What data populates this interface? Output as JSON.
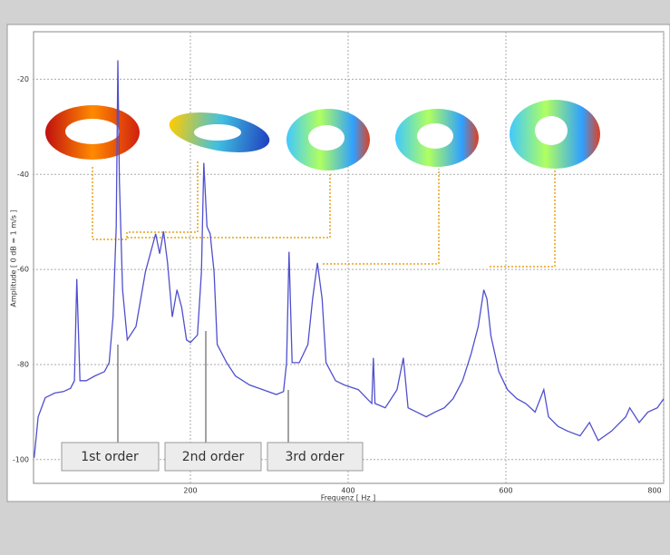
{
  "chart_data": {
    "type": "line",
    "x_label": "Frequenz [ Hz ]",
    "y_label": "Amplitude [ 0 dB = 1 m/s ]",
    "xlim": [
      0,
      800
    ],
    "ylim": [
      -105,
      -10
    ],
    "xticks": [
      200,
      400,
      600,
      800
    ],
    "yticks": [
      -100,
      -80,
      -60,
      -40,
      -20
    ],
    "grid": true,
    "color": "#4f4fcf",
    "x": [
      2,
      7,
      16,
      28,
      39,
      48,
      53,
      56,
      60,
      68,
      79,
      91,
      97,
      102,
      106,
      108,
      110,
      114,
      120,
      131,
      143,
      156,
      161,
      166,
      171,
      177,
      183,
      189,
      195,
      200,
      209,
      214,
      217,
      221,
      225,
      230,
      234,
      246,
      257,
      275,
      292,
      309,
      318,
      322,
      325,
      329,
      338,
      349,
      355,
      361,
      367,
      372,
      384,
      395,
      413,
      424,
      430,
      432,
      434,
      447,
      462,
      470,
      476,
      487,
      499,
      510,
      522,
      533,
      545,
      556,
      565,
      572,
      576,
      581,
      591,
      602,
      614,
      625,
      637,
      648,
      654,
      666,
      678,
      694,
      706,
      717,
      734,
      752,
      757,
      769,
      780,
      792,
      800
    ],
    "values": [
      -99.6,
      -91,
      -87,
      -86,
      -85.7,
      -85,
      -83.4,
      -62,
      -83.4,
      -83.4,
      -82.4,
      -81.5,
      -79.6,
      -70,
      -51,
      -16,
      -41.4,
      -64.3,
      -74.8,
      -72,
      -60.5,
      -52.5,
      -56.7,
      -52,
      -58.6,
      -70,
      -64.3,
      -68,
      -74.8,
      -75.4,
      -73.8,
      -60.5,
      -37.6,
      -51,
      -52.5,
      -60.5,
      -75.8,
      -79.6,
      -82.4,
      -84.3,
      -85.3,
      -86.3,
      -85.7,
      -79.6,
      -56.3,
      -79.6,
      -79.6,
      -75.8,
      -66.2,
      -58.6,
      -66.2,
      -79.6,
      -83.4,
      -84.3,
      -85.3,
      -87.2,
      -88.2,
      -78.6,
      -88.2,
      -89.1,
      -85.3,
      -78.6,
      -89.1,
      -90,
      -91,
      -90,
      -89.1,
      -87.2,
      -83.4,
      -77.7,
      -72,
      -64.3,
      -66.2,
      -74,
      -81.5,
      -85.3,
      -87.2,
      -88.2,
      -90,
      -85.3,
      -91,
      -93,
      -94,
      -95,
      -92.2,
      -96,
      -94,
      -91,
      -89.1,
      -92.2,
      -90,
      -89.1,
      -87.2
    ],
    "annotations": [
      "1st order",
      "2nd order",
      "3rd order"
    ]
  }
}
